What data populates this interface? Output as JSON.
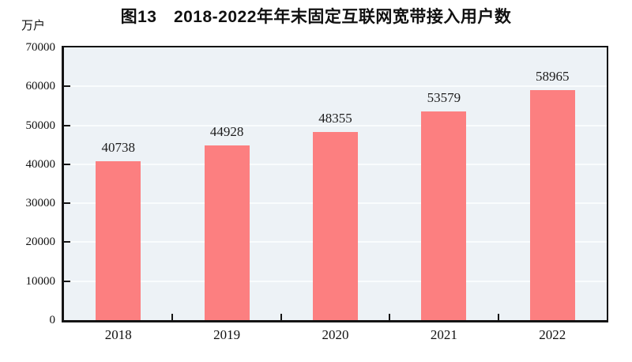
{
  "chart": {
    "title": "图13　2018-2022年年末固定互联网宽带接入用户数",
    "unit_label": "万户"
  },
  "chart_data": {
    "type": "bar",
    "title": "图13　2018-2022年年末固定互联网宽带接入用户数",
    "unit": "万户",
    "categories": [
      "2018",
      "2019",
      "2020",
      "2021",
      "2022"
    ],
    "values": [
      40738,
      44928,
      48355,
      53579,
      58965
    ],
    "value_labels": [
      "40738",
      "44928",
      "48355",
      "53579",
      "58965"
    ],
    "xlabel": "",
    "ylabel": "万户",
    "ylim": [
      0,
      70000
    ],
    "yticks": [
      0,
      10000,
      20000,
      30000,
      40000,
      50000,
      60000,
      70000
    ],
    "ytick_labels": [
      "0",
      "10000",
      "20000",
      "30000",
      "40000",
      "50000",
      "60000",
      "70000"
    ],
    "grid": true,
    "legend": "none",
    "colors": {
      "bar_fill": "#fc7f80",
      "plot_background": "#edf2f6",
      "gridline": "#f9fcfd",
      "axis": "#141414",
      "text": "#111111"
    }
  }
}
